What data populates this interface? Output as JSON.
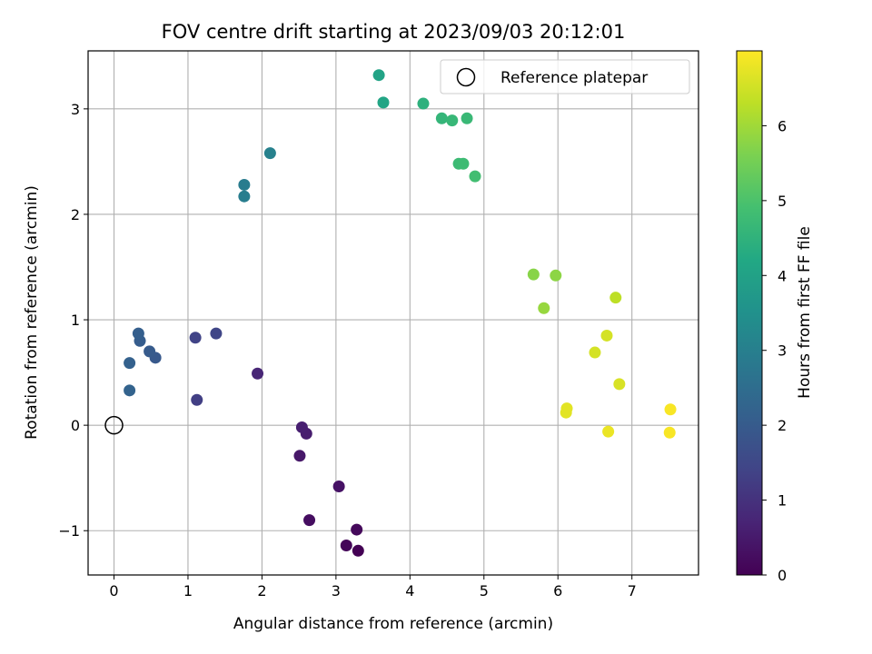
{
  "chart_data": {
    "type": "scatter",
    "title": "FOV centre drift starting at 2023/09/03 20:12:01",
    "xlabel": "Angular distance from reference (arcmin)",
    "ylabel": "Rotation from reference (arcmin)",
    "xlim": [
      -0.35,
      7.9
    ],
    "ylim": [
      -1.42,
      3.55
    ],
    "xticks": [
      0,
      1,
      2,
      3,
      4,
      5,
      6,
      7
    ],
    "yticks": [
      -1,
      0,
      1,
      2,
      3
    ],
    "grid": true,
    "legend": {
      "location": "top-right",
      "entries": [
        "Reference platepar"
      ]
    },
    "reference_point": {
      "name": "Reference platepar",
      "x": 0,
      "y": 0
    },
    "colorbar": {
      "label": "Hours from first FF file",
      "colormap": "viridis",
      "range": [
        0,
        7.0
      ],
      "ticks": [
        0,
        1,
        2,
        3,
        4,
        5,
        6
      ]
    },
    "points": [
      {
        "x": 3.3,
        "y": -1.19,
        "hours": 0.0
      },
      {
        "x": 3.14,
        "y": -1.14,
        "hours": 0.08
      },
      {
        "x": 3.28,
        "y": -0.99,
        "hours": 0.15
      },
      {
        "x": 2.64,
        "y": -0.9,
        "hours": 0.25
      },
      {
        "x": 3.04,
        "y": -0.58,
        "hours": 0.35
      },
      {
        "x": 2.51,
        "y": -0.29,
        "hours": 0.45
      },
      {
        "x": 2.6,
        "y": -0.08,
        "hours": 0.55
      },
      {
        "x": 2.54,
        "y": -0.02,
        "hours": 0.6
      },
      {
        "x": 1.94,
        "y": 0.49,
        "hours": 0.75
      },
      {
        "x": 1.12,
        "y": 0.24,
        "hours": 1.3
      },
      {
        "x": 1.38,
        "y": 0.87,
        "hours": 1.45
      },
      {
        "x": 1.1,
        "y": 0.83,
        "hours": 1.4
      },
      {
        "x": 0.56,
        "y": 0.64,
        "hours": 1.95
      },
      {
        "x": 0.48,
        "y": 0.7,
        "hours": 2.0
      },
      {
        "x": 0.35,
        "y": 0.8,
        "hours": 2.05
      },
      {
        "x": 0.33,
        "y": 0.87,
        "hours": 2.1
      },
      {
        "x": 0.21,
        "y": 0.59,
        "hours": 2.15
      },
      {
        "x": 0.21,
        "y": 0.33,
        "hours": 2.2
      },
      {
        "x": 1.76,
        "y": 2.17,
        "hours": 2.95
      },
      {
        "x": 1.76,
        "y": 2.28,
        "hours": 2.9
      },
      {
        "x": 2.11,
        "y": 2.58,
        "hours": 3.05
      },
      {
        "x": 3.58,
        "y": 3.32,
        "hours": 4.05
      },
      {
        "x": 3.64,
        "y": 3.06,
        "hours": 4.1
      },
      {
        "x": 4.18,
        "y": 3.05,
        "hours": 4.45
      },
      {
        "x": 4.43,
        "y": 2.91,
        "hours": 4.6
      },
      {
        "x": 4.57,
        "y": 2.89,
        "hours": 4.65
      },
      {
        "x": 4.77,
        "y": 2.91,
        "hours": 4.7
      },
      {
        "x": 4.66,
        "y": 2.48,
        "hours": 4.75
      },
      {
        "x": 4.72,
        "y": 2.48,
        "hours": 4.78
      },
      {
        "x": 4.88,
        "y": 2.36,
        "hours": 4.85
      },
      {
        "x": 5.67,
        "y": 1.43,
        "hours": 5.75
      },
      {
        "x": 5.97,
        "y": 1.42,
        "hours": 5.8
      },
      {
        "x": 5.81,
        "y": 1.11,
        "hours": 5.9
      },
      {
        "x": 6.78,
        "y": 1.21,
        "hours": 6.3
      },
      {
        "x": 6.66,
        "y": 0.85,
        "hours": 6.55
      },
      {
        "x": 6.5,
        "y": 0.69,
        "hours": 6.55
      },
      {
        "x": 6.83,
        "y": 0.39,
        "hours": 6.6
      },
      {
        "x": 6.12,
        "y": 0.16,
        "hours": 6.7
      },
      {
        "x": 6.11,
        "y": 0.12,
        "hours": 6.7
      },
      {
        "x": 6.68,
        "y": -0.06,
        "hours": 6.8
      },
      {
        "x": 7.52,
        "y": 0.15,
        "hours": 6.95
      },
      {
        "x": 7.51,
        "y": -0.07,
        "hours": 6.95
      }
    ]
  }
}
